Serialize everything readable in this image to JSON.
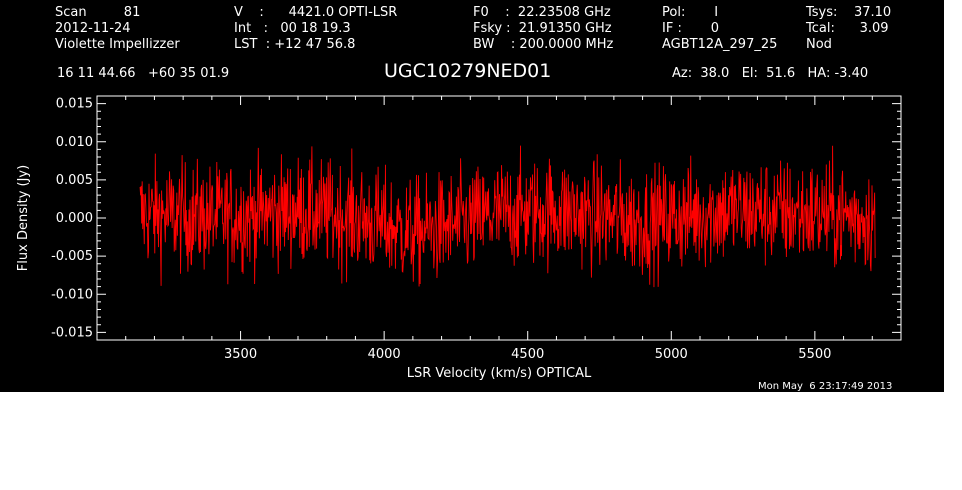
{
  "header": {
    "col1": [
      "Scan         81",
      "2012-11-24",
      "Violette Impellizzer"
    ],
    "col2": [
      "V    :      4421.0 OPTI-LSR",
      "Int   :   00 18 19.3",
      "LST  : +12 47 56.8"
    ],
    "col3": [
      "F0    :  22.23508 GHz",
      "Fsky :  21.91350 GHz",
      "BW    : 200.0000 MHz"
    ],
    "col4": [
      "Pol:       I",
      "IF :       0",
      "AGBT12A_297_25"
    ],
    "col5": [
      "Tsys:    37.10",
      "Tcal:      3.09",
      "Nod"
    ],
    "coords": "16 11 44.66   +60 35 01.9",
    "source": "UGC10279NED01",
    "azel": "Az:  38.0   El:  51.6   HA: -3.40"
  },
  "footer": {
    "timestamp": "Mon May  6 23:17:49 2013"
  },
  "chart_data": {
    "type": "line",
    "title": "UGC10279NED01",
    "xlabel": "LSR Velocity (km/s) OPTICAL",
    "ylabel": "Flux Density (Jy)",
    "xlim": [
      3000,
      5800
    ],
    "ylim": [
      -0.016,
      0.016
    ],
    "x_ticks": [
      3500,
      4000,
      4500,
      5000,
      5500
    ],
    "x_tick_labels": [
      "3500",
      "4000",
      "4500",
      "5000",
      "5500"
    ],
    "y_ticks": [
      -0.015,
      -0.01,
      -0.005,
      0.0,
      0.005,
      0.01,
      0.015
    ],
    "y_tick_labels": [
      "-0.015",
      "-0.010",
      "-0.005",
      "0.000",
      "0.005",
      "0.010",
      "0.015"
    ],
    "grid": false,
    "series": [
      {
        "color": "#ff0000",
        "x_start": 3150,
        "x_end": 5710,
        "n_points": 1400,
        "envelope": [
          {
            "x": 3150,
            "mean": 0.0005,
            "noise": 0.0035
          },
          {
            "x": 3400,
            "mean": 0.0,
            "noise": 0.0035
          },
          {
            "x": 3700,
            "mean": 0.001,
            "noise": 0.0035
          },
          {
            "x": 3900,
            "mean": 0.0,
            "noise": 0.0035
          },
          {
            "x": 4100,
            "mean": -0.002,
            "noise": 0.0035
          },
          {
            "x": 4250,
            "mean": -0.001,
            "noise": 0.0035
          },
          {
            "x": 4400,
            "mean": 0.0005,
            "noise": 0.0035
          },
          {
            "x": 4600,
            "mean": 0.001,
            "noise": 0.0035
          },
          {
            "x": 4900,
            "mean": -0.0005,
            "noise": 0.0035
          },
          {
            "x": 5200,
            "mean": 0.001,
            "noise": 0.0035
          },
          {
            "x": 5500,
            "mean": 0.0005,
            "noise": 0.0035
          },
          {
            "x": 5710,
            "mean": 0.0,
            "noise": 0.0035
          }
        ]
      }
    ]
  },
  "colors": {
    "background": "#000000",
    "foreground": "#ffffff",
    "spectrum": "#ff0000"
  }
}
